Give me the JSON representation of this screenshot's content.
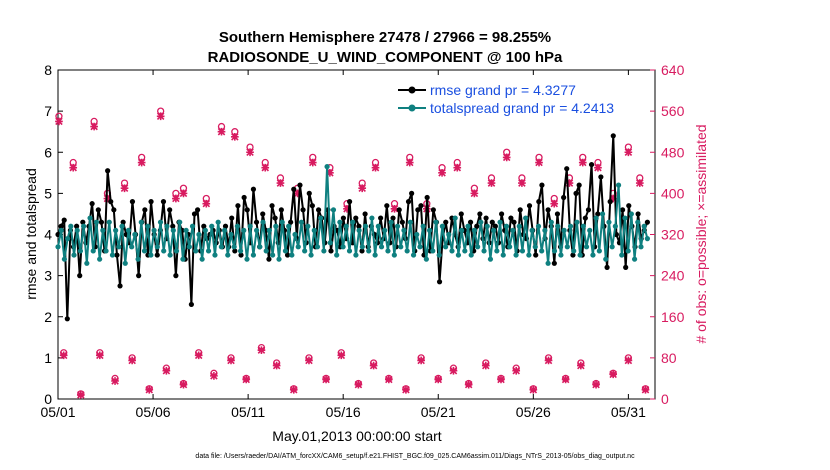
{
  "chart_data": {
    "type": "line",
    "title_line1": "Southern Hemisphere 27478 / 27966 = 98.255%",
    "title_line2": "RADIOSONDE_U_WIND_COMPONENT @ 100 hPa",
    "xlabel": "May.01,2013 00:00:00 start",
    "ylabel_left": "rmse and totalspread",
    "ylabel_right": "# of obs: o=possible; ×=assimilated",
    "footer": "data file: /Users/raeder/DAI/ATM_forcXX/CAM6_setup/f.e21.FHIST_BGC.f09_025.CAM6assim.011/Diags_NTrS_2013-05/obs_diag_output.nc",
    "xlim": [
      0,
      31.4
    ],
    "ylim_left": [
      0,
      8
    ],
    "ylim_right": [
      0,
      640
    ],
    "x_ticks": [
      0,
      5,
      10,
      15,
      20,
      25,
      30
    ],
    "x_tick_labels": [
      "05/01",
      "05/06",
      "05/11",
      "05/16",
      "05/21",
      "05/26",
      "05/31"
    ],
    "y_ticks_left": [
      0,
      1,
      2,
      3,
      4,
      5,
      6,
      7,
      8
    ],
    "y_ticks_right": [
      0,
      80,
      160,
      240,
      320,
      400,
      480,
      560,
      640
    ],
    "colors": {
      "rmse": "#000000",
      "spread": "#0f8080",
      "obs": "#d81b60",
      "right_axis": "#d81b60",
      "legend_text": "#1a4fe0"
    },
    "series": [
      {
        "name": "rmse grand pr = 4.3277",
        "axis": "left",
        "values": [
          4.0,
          4.2,
          4.35,
          1.95,
          4.1,
          3.7,
          4.2,
          3.0,
          4.3,
          3.8,
          4.2,
          4.75,
          3.7,
          4.6,
          4.3,
          3.6,
          5.55,
          4.8,
          4.6,
          3.5,
          2.75,
          4.3,
          4.0,
          3.8,
          4.8,
          4.0,
          3.0,
          4.3,
          4.6,
          3.5,
          4.8,
          4.0,
          3.5,
          4.1,
          4.8,
          3.9,
          4.6,
          4.2,
          3.0,
          4.3,
          4.1,
          3.4,
          4.0,
          2.3,
          4.5,
          4.6,
          3.6,
          4.2,
          3.9,
          4.0,
          4.1,
          3.8,
          4.1,
          3.7,
          4.2,
          3.7,
          4.4,
          3.6,
          4.7,
          3.5,
          4.9,
          4.6,
          3.8,
          5.1,
          4.3,
          3.7,
          4.5,
          4.1,
          3.4,
          4.7,
          4.4,
          3.8,
          4.6,
          4.1,
          3.5,
          4.3,
          5.1,
          3.9,
          5.2,
          4.6,
          3.8,
          5.0,
          4.7,
          3.7,
          4.6,
          4.4,
          3.8,
          4.6,
          3.6,
          4.2,
          4.1,
          3.7,
          4.4,
          3.9,
          4.8,
          3.8,
          4.4,
          4.2,
          3.6,
          4.5,
          3.7,
          4.2,
          4.0,
          3.8,
          4.4,
          3.9,
          4.7,
          3.8,
          4.4,
          3.7,
          4.6,
          4.3,
          3.9,
          4.8,
          5.0,
          3.6,
          4.6,
          4.7,
          3.5,
          4.9,
          3.6,
          4.6,
          4.3,
          2.85,
          3.9,
          4.3,
          3.8,
          4.4,
          4.0,
          3.7,
          4.5,
          4.1,
          3.8,
          4.3,
          3.6,
          4.2,
          4.5,
          3.9,
          4.4,
          3.8,
          4.3,
          4.2,
          3.8,
          4.5,
          4.1,
          3.7,
          4.4,
          4.3,
          3.6,
          4.6,
          4.0,
          3.9,
          4.7,
          4.1,
          3.5,
          4.8,
          5.2,
          3.9,
          4.6,
          4.2,
          3.3,
          4.5,
          3.7,
          4.9,
          5.6,
          4.1,
          3.5,
          5.0,
          5.2,
          3.5,
          4.4,
          4.6,
          5.7,
          3.7,
          4.5,
          5.4,
          4.2,
          3.2,
          4.8,
          6.4,
          4.0,
          3.8,
          4.6,
          3.2,
          4.7,
          4.2,
          3.7,
          4.5,
          3.9,
          4.1,
          4.3
        ]
      },
      {
        "name": "totalspread grand pr = 4.2413",
        "axis": "left",
        "values": [
          3.7,
          4.1,
          3.4,
          3.9,
          4.2,
          3.5,
          4.1,
          3.6,
          4.2,
          3.3,
          4.4,
          3.6,
          4.3,
          3.4,
          4.1,
          3.6,
          4.3,
          3.5,
          4.1,
          3.7,
          4.2,
          3.3,
          4.1,
          3.7,
          4.0,
          3.4,
          4.3,
          3.6,
          4.2,
          3.5,
          4.1,
          3.7,
          4.3,
          3.6,
          4.2,
          3.5,
          4.1,
          3.6,
          4.3,
          3.4,
          4.1,
          3.7,
          4.2,
          3.6,
          4.0,
          3.4,
          4.1,
          3.6,
          4.2,
          3.5,
          4.3,
          3.7,
          4.1,
          3.5,
          4.0,
          3.7,
          4.2,
          3.6,
          4.1,
          3.4,
          4.2,
          3.5,
          4.1,
          3.7,
          4.3,
          3.6,
          4.1,
          3.5,
          4.2,
          3.4,
          4.3,
          3.6,
          4.2,
          3.5,
          4.0,
          3.7,
          4.3,
          3.6,
          4.2,
          3.5,
          4.1,
          3.7,
          4.4,
          3.6,
          5.65,
          3.8,
          4.6,
          3.5,
          4.3,
          3.7,
          4.2,
          3.6,
          4.3,
          3.5,
          4.1,
          3.7,
          4.2,
          3.6,
          4.4,
          3.5,
          4.2,
          3.7,
          4.1,
          3.6,
          4.3,
          3.5,
          4.2,
          3.7,
          4.1,
          3.6,
          4.3,
          3.5,
          4.0,
          3.7,
          4.2,
          3.4,
          4.1,
          3.6,
          4.3,
          3.5,
          4.2,
          3.7,
          4.0,
          3.6,
          4.4,
          3.5,
          4.1,
          3.6,
          4.2,
          3.5,
          4.1,
          3.7,
          4.3,
          3.6,
          4.2,
          3.4,
          4.1,
          3.6,
          4.3,
          3.5,
          4.2,
          3.7,
          4.1,
          3.5,
          4.2,
          3.6,
          4.4,
          3.5,
          4.1,
          3.7,
          4.2,
          3.6,
          4.1,
          3.3,
          4.3,
          3.6,
          4.2,
          3.5,
          4.1,
          3.7,
          4.2,
          3.6,
          4.3,
          3.5,
          4.2,
          3.7,
          4.1,
          3.5,
          4.4,
          3.6,
          4.5,
          3.4,
          4.3,
          3.7,
          4.2,
          5.2,
          3.5,
          4.4,
          3.6,
          4.5,
          3.4,
          4.3,
          3.7,
          4.2,
          3.9
        ]
      },
      {
        "name": "obs possible",
        "axis": "right",
        "marker": "o",
        "x": [
          0.05,
          0.8,
          1.9,
          2.6,
          3.5,
          4.4,
          5.4,
          6.2,
          6.6,
          7.8,
          8.6,
          9.3,
          10.1,
          10.9,
          11.7,
          12.6,
          13.4,
          14.3,
          15.2,
          16.0,
          16.7,
          17.7,
          18.5,
          19.4,
          20.2,
          21.0,
          21.9,
          22.8,
          23.6,
          24.4,
          25.3,
          26.1,
          26.9,
          27.6,
          28.4,
          29.2,
          30.0,
          30.6
        ],
        "values": [
          550,
          460,
          540,
          400,
          420,
          470,
          560,
          400,
          410,
          390,
          530,
          520,
          490,
          460,
          430,
          410,
          470,
          450,
          380,
          420,
          460,
          380,
          470,
          380,
          450,
          460,
          410,
          430,
          480,
          430,
          470,
          390,
          430,
          470,
          460,
          400,
          490,
          430
        ]
      },
      {
        "name": "obs assimilated",
        "axis": "right",
        "marker": "x",
        "x": [
          0.05,
          0.8,
          1.9,
          2.6,
          3.5,
          4.4,
          5.4,
          6.2,
          6.6,
          7.8,
          8.6,
          9.3,
          10.1,
          10.9,
          11.7,
          12.6,
          13.4,
          14.3,
          15.2,
          16.0,
          16.7,
          17.7,
          18.5,
          19.4,
          20.2,
          21.0,
          21.9,
          22.8,
          23.6,
          24.4,
          25.3,
          26.1,
          26.9,
          27.6,
          28.4,
          29.2,
          30.0,
          30.6
        ],
        "values": [
          540,
          450,
          530,
          390,
          410,
          460,
          550,
          390,
          400,
          380,
          520,
          510,
          480,
          450,
          420,
          400,
          460,
          440,
          370,
          410,
          450,
          370,
          460,
          370,
          440,
          450,
          400,
          420,
          470,
          420,
          460,
          380,
          420,
          460,
          450,
          390,
          480,
          420
        ]
      },
      {
        "name": "obs possible low",
        "axis": "right",
        "marker": "o",
        "x": [
          0.3,
          1.2,
          2.2,
          3.0,
          3.9,
          4.8,
          5.7,
          6.6,
          7.4,
          8.2,
          9.1,
          9.9,
          10.7,
          11.5,
          12.4,
          13.2,
          14.1,
          14.9,
          15.8,
          16.6,
          17.4,
          18.3,
          19.1,
          20.0,
          20.8,
          21.6,
          22.5,
          23.3,
          24.1,
          25.0,
          25.8,
          26.7,
          27.5,
          28.3,
          29.2,
          30.0,
          30.9
        ],
        "values": [
          90,
          10,
          90,
          40,
          80,
          20,
          60,
          30,
          90,
          50,
          80,
          40,
          100,
          70,
          20,
          80,
          40,
          90,
          30,
          70,
          40,
          20,
          80,
          40,
          60,
          30,
          70,
          40,
          60,
          20,
          80,
          40,
          70,
          30,
          50,
          80,
          20
        ]
      },
      {
        "name": "obs assimilated low",
        "axis": "right",
        "marker": "x",
        "x": [
          0.3,
          1.2,
          2.2,
          3.0,
          3.9,
          4.8,
          5.7,
          6.6,
          7.4,
          8.2,
          9.1,
          9.9,
          10.7,
          11.5,
          12.4,
          13.2,
          14.1,
          14.9,
          15.8,
          16.6,
          17.4,
          18.3,
          19.1,
          20.0,
          20.8,
          21.6,
          22.5,
          23.3,
          24.1,
          25.0,
          25.8,
          26.7,
          27.5,
          28.3,
          29.2,
          30.0,
          30.9
        ],
        "values": [
          85,
          8,
          85,
          35,
          75,
          18,
          55,
          28,
          85,
          45,
          75,
          38,
          95,
          65,
          18,
          75,
          38,
          85,
          28,
          65,
          38,
          18,
          75,
          38,
          55,
          28,
          65,
          38,
          55,
          18,
          75,
          38,
          65,
          28,
          48,
          75,
          18
        ]
      }
    ],
    "legend": [
      {
        "label": "rmse grand pr = 4.3277",
        "series": "rmse"
      },
      {
        "label": "totalspread grand pr = 4.2413",
        "series": "spread"
      }
    ],
    "legend_position": "top-right"
  }
}
